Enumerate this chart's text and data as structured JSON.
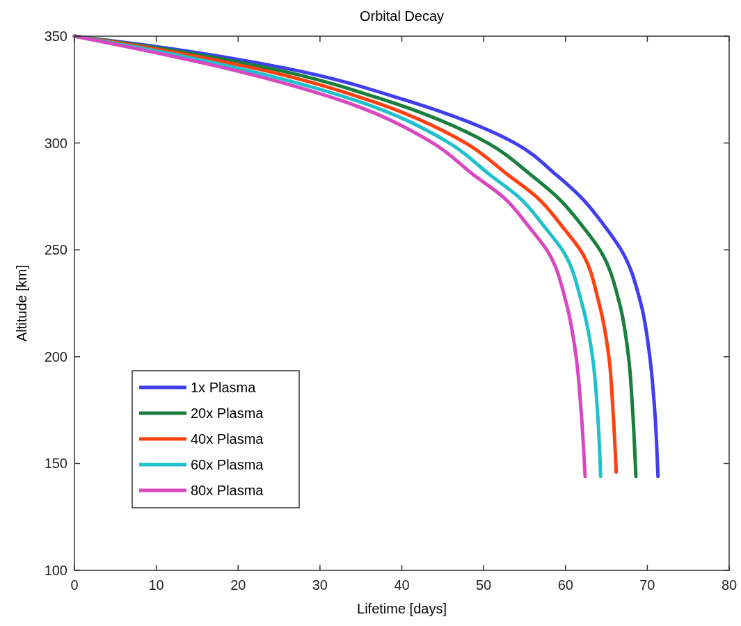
{
  "chart_data": {
    "type": "line",
    "title": "Orbital Decay",
    "xlabel": "Lifetime [days]",
    "ylabel": "Altitude [km]",
    "xlim": [
      0,
      80
    ],
    "xticks": [
      0,
      10,
      20,
      30,
      40,
      50,
      60,
      70,
      80
    ],
    "ylim": [
      100,
      350
    ],
    "yticks": [
      100,
      150,
      200,
      250,
      300,
      350
    ],
    "grid": false,
    "legend": "bottom left",
    "marker": "none",
    "line_style": "solid",
    "series": [
      {
        "name": "1x Plasma",
        "color": "#3f3ff0",
        "x": [
          0,
          10.2,
          25.8,
          40.5,
          53.8,
          58.9,
          61.8,
          65.0,
          66.8,
          69.2,
          70.3,
          70.9,
          71.3
        ],
        "values": [
          350,
          345,
          335,
          320,
          300,
          285,
          275,
          260,
          250,
          225,
          200,
          175,
          144
        ]
      },
      {
        "name": "20x Plasma",
        "color": "#1a7f3c",
        "x": [
          0,
          9.3,
          23.8,
          38.0,
          50.5,
          55.8,
          58.9,
          62.3,
          64.2,
          66.6,
          67.7,
          68.2,
          68.6
        ],
        "values": [
          350,
          345,
          335,
          320,
          300,
          285,
          275,
          260,
          250,
          225,
          200,
          175,
          144
        ]
      },
      {
        "name": "40x Plasma",
        "color": "#ff4010",
        "x": [
          0,
          8.4,
          22.0,
          36.0,
          47.8,
          53.0,
          56.4,
          59.8,
          61.8,
          64.1,
          65.3,
          65.8,
          66.2
        ],
        "values": [
          350,
          345,
          335,
          320,
          300,
          285,
          275,
          260,
          250,
          225,
          200,
          175,
          146
        ]
      },
      {
        "name": "60x Plasma",
        "color": "#20c0cc",
        "x": [
          0,
          7.4,
          20.0,
          34.3,
          45.8,
          50.8,
          54.2,
          57.6,
          59.6,
          62.0,
          63.3,
          63.9,
          64.3
        ],
        "values": [
          350,
          345,
          335,
          320,
          300,
          285,
          275,
          260,
          250,
          225,
          200,
          175,
          144
        ]
      },
      {
        "name": "80x Plasma",
        "color": "#d848c0",
        "x": [
          0,
          6.5,
          18.5,
          32.5,
          43.8,
          48.8,
          52.3,
          55.7,
          57.7,
          60.1,
          61.3,
          61.9,
          62.4
        ],
        "values": [
          350,
          345,
          335,
          320,
          300,
          285,
          275,
          260,
          250,
          225,
          200,
          175,
          144
        ]
      }
    ]
  }
}
